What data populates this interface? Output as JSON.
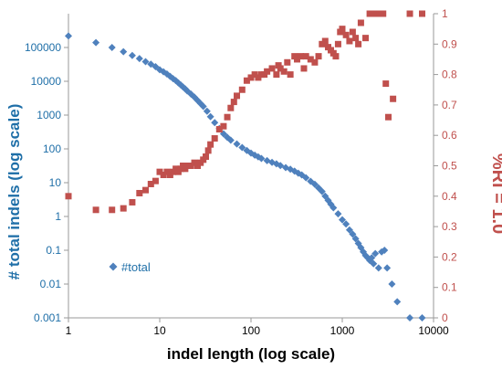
{
  "chart_data": {
    "type": "scatter",
    "title": "",
    "xlabel": "indel length (log scale)",
    "ylabel_left": "# total indels (log scale)",
    "ylabel_right": "%RI = 1.0",
    "x_scale": "log",
    "y_left_scale": "log",
    "x_range": [
      1,
      10000
    ],
    "y_left_range": [
      0.001,
      1000000
    ],
    "y_right_range": [
      0,
      1
    ],
    "x_ticks": [
      "1",
      "10",
      "100",
      "1000",
      "10000"
    ],
    "y_left_ticks": [
      "0.001",
      "0.01",
      "0.1",
      "1",
      "10",
      "100",
      "1000",
      "10000",
      "100000"
    ],
    "y_right_ticks": [
      "0",
      "0.1",
      "0.2",
      "0.3",
      "0.4",
      "0.5",
      "0.6",
      "0.7",
      "0.8",
      "0.9",
      "1"
    ],
    "grid": false,
    "legend": {
      "position": "bottom-left",
      "entries": [
        "#total"
      ]
    },
    "colors": {
      "total": "#4F81BD",
      "ri": "#C0504D",
      "left_axis_text": "#1F6FA8",
      "right_axis_text": "#C0504D"
    },
    "series": [
      {
        "name": "#total",
        "axis": "left",
        "marker": "diamond",
        "x": [
          1,
          2,
          3,
          4,
          5,
          6,
          7,
          8,
          9,
          10,
          11,
          12,
          13,
          14,
          15,
          16,
          17,
          18,
          19,
          20,
          22,
          24,
          26,
          28,
          30,
          33,
          36,
          40,
          45,
          50,
          55,
          60,
          70,
          80,
          90,
          100,
          110,
          120,
          130,
          150,
          170,
          190,
          210,
          240,
          270,
          300,
          330,
          360,
          400,
          450,
          500,
          550,
          600,
          650,
          700,
          750,
          800,
          900,
          1000,
          1100,
          1200,
          1300,
          1400,
          1500,
          1600,
          1700,
          1800,
          1900,
          2000,
          2100,
          2200,
          2300,
          2500,
          2700,
          2900,
          3100,
          3500,
          4000,
          5500,
          7500
        ],
        "y": [
          220000,
          140000,
          100000,
          75000,
          58000,
          47000,
          38000,
          32000,
          27000,
          22000,
          19000,
          16500,
          14000,
          12000,
          10500,
          9000,
          7800,
          6800,
          6000,
          5200,
          4200,
          3400,
          2700,
          2200,
          1800,
          1300,
          900,
          600,
          400,
          280,
          220,
          180,
          140,
          110,
          90,
          75,
          65,
          58,
          52,
          45,
          40,
          36,
          32,
          28,
          25,
          22,
          19,
          17,
          14,
          11,
          9,
          7,
          5.5,
          4,
          3,
          2.3,
          1.8,
          1.2,
          0.8,
          0.6,
          0.4,
          0.3,
          0.22,
          0.16,
          0.12,
          0.09,
          0.07,
          0.06,
          0.05,
          0.06,
          0.04,
          0.08,
          0.03,
          0.09,
          0.1,
          0.03,
          0.01,
          0.003,
          0.001,
          0.001
        ]
      },
      {
        "name": "",
        "axis": "right",
        "marker": "square",
        "x": [
          1,
          2,
          3,
          4,
          5,
          6,
          7,
          8,
          9,
          10,
          11,
          12,
          13,
          14,
          15,
          16,
          17,
          18,
          19,
          20,
          22,
          24,
          26,
          28,
          30,
          32,
          34,
          36,
          40,
          45,
          50,
          55,
          60,
          65,
          70,
          80,
          90,
          100,
          110,
          120,
          130,
          140,
          150,
          170,
          190,
          200,
          210,
          230,
          250,
          270,
          300,
          320,
          350,
          380,
          400,
          450,
          500,
          550,
          600,
          650,
          700,
          750,
          800,
          850,
          900,
          950,
          1000,
          1100,
          1200,
          1300,
          1400,
          1500,
          1600,
          1800,
          2000,
          2200,
          2400,
          2600,
          2800,
          3000,
          3200,
          3600,
          5500,
          7500
        ],
        "y": [
          0.4,
          0.355,
          0.355,
          0.36,
          0.38,
          0.41,
          0.42,
          0.44,
          0.45,
          0.48,
          0.47,
          0.48,
          0.47,
          0.48,
          0.49,
          0.48,
          0.49,
          0.5,
          0.49,
          0.5,
          0.5,
          0.51,
          0.5,
          0.51,
          0.52,
          0.53,
          0.55,
          0.57,
          0.59,
          0.62,
          0.63,
          0.66,
          0.69,
          0.71,
          0.73,
          0.75,
          0.78,
          0.79,
          0.8,
          0.79,
          0.8,
          0.8,
          0.81,
          0.82,
          0.8,
          0.83,
          0.82,
          0.81,
          0.84,
          0.8,
          0.86,
          0.85,
          0.86,
          0.82,
          0.86,
          0.85,
          0.84,
          0.86,
          0.9,
          0.91,
          0.89,
          0.88,
          0.87,
          0.86,
          0.9,
          0.94,
          0.95,
          0.93,
          0.91,
          0.94,
          0.92,
          0.9,
          0.97,
          0.92,
          1,
          1,
          1,
          1,
          1,
          0.77,
          0.66,
          0.72,
          1,
          1
        ]
      }
    ]
  }
}
